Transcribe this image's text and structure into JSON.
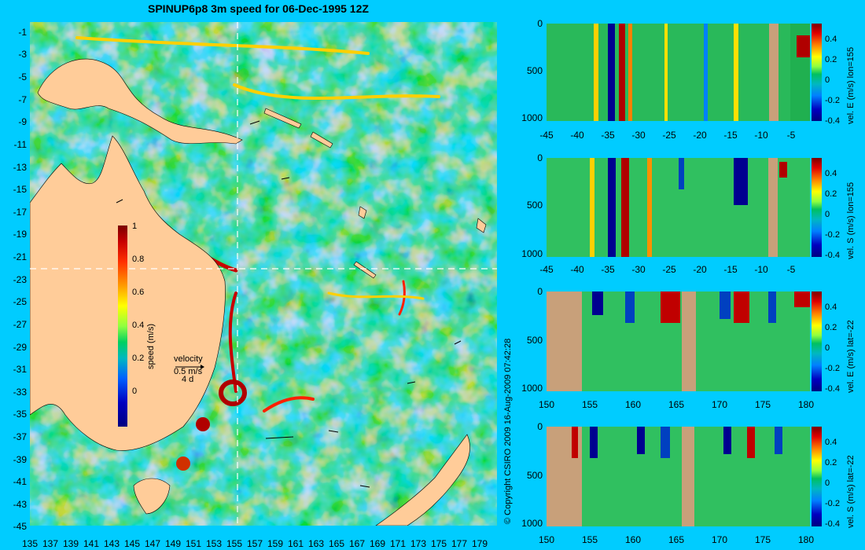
{
  "title": "SPINUP6p8 3m speed for 06-Dec-1995 12Z",
  "map": {
    "lat_labels": [
      "-1",
      "-3",
      "-5",
      "-7",
      "-9",
      "-11",
      "-13",
      "-15",
      "-17",
      "-19",
      "-21",
      "-23",
      "-25",
      "-27",
      "-29",
      "-31",
      "-33",
      "-35",
      "-37",
      "-39",
      "-41",
      "-43",
      "-45"
    ],
    "lon_labels": [
      "135",
      "137",
      "139",
      "141",
      "143",
      "145",
      "147",
      "149",
      "151",
      "153",
      "155",
      "157",
      "159",
      "161",
      "163",
      "165",
      "167",
      "169",
      "171",
      "173",
      "175",
      "177",
      "179"
    ],
    "section_lon": "155",
    "section_lat": "-22",
    "colors": {
      "ocean": "#00ccff",
      "land": "#ffcc99",
      "strong": "#c80000",
      "moderate": "#ffd000",
      "weak": "#3080ff"
    }
  },
  "speed_colorbar": {
    "label": "speed (m/s)",
    "ticks": [
      "1",
      "0.8",
      "0.6",
      "0.4",
      "0.2",
      "0"
    ]
  },
  "velocity_legend": {
    "title": "velocity",
    "scale": "0.5 m/s",
    "duration": "4 d"
  },
  "copyright": "© Copyright CSIRO 2009  16-Aug-2009 07:42:28",
  "panels": [
    {
      "side_label": "vel. E (m/s) lon=155",
      "x_ticks": [
        "-45",
        "-40",
        "-35",
        "-30",
        "-25",
        "-20",
        "-15",
        "-10",
        "-5"
      ],
      "y_ticks": [
        "0",
        "500",
        "1000"
      ],
      "cbar_ticks": [
        "0.4",
        "0.2",
        "0",
        "-0.2",
        "-0.4"
      ]
    },
    {
      "side_label": "vel. S (m/s) lon=155",
      "x_ticks": [
        "-45",
        "-40",
        "-35",
        "-30",
        "-25",
        "-20",
        "-15",
        "-10",
        "-5"
      ],
      "y_ticks": [
        "0",
        "500",
        "1000"
      ],
      "cbar_ticks": [
        "0.4",
        "0.2",
        "0",
        "-0.2",
        "-0.4"
      ]
    },
    {
      "side_label": "vel. E (m/s) lat=-22",
      "x_ticks": [
        "150",
        "155",
        "160",
        "165",
        "170",
        "175",
        "180"
      ],
      "y_ticks": [
        "0",
        "500",
        "1000"
      ],
      "cbar_ticks": [
        "0.4",
        "0.2",
        "0",
        "-0.2",
        "-0.4"
      ]
    },
    {
      "side_label": "vel. S (m/s) lat=-22",
      "x_ticks": [
        "150",
        "155",
        "160",
        "165",
        "170",
        "175",
        "180"
      ],
      "y_ticks": [
        "0",
        "500",
        "1000"
      ],
      "cbar_ticks": [
        "0.4",
        "0.2",
        "0",
        "-0.2",
        "-0.4"
      ]
    }
  ]
}
